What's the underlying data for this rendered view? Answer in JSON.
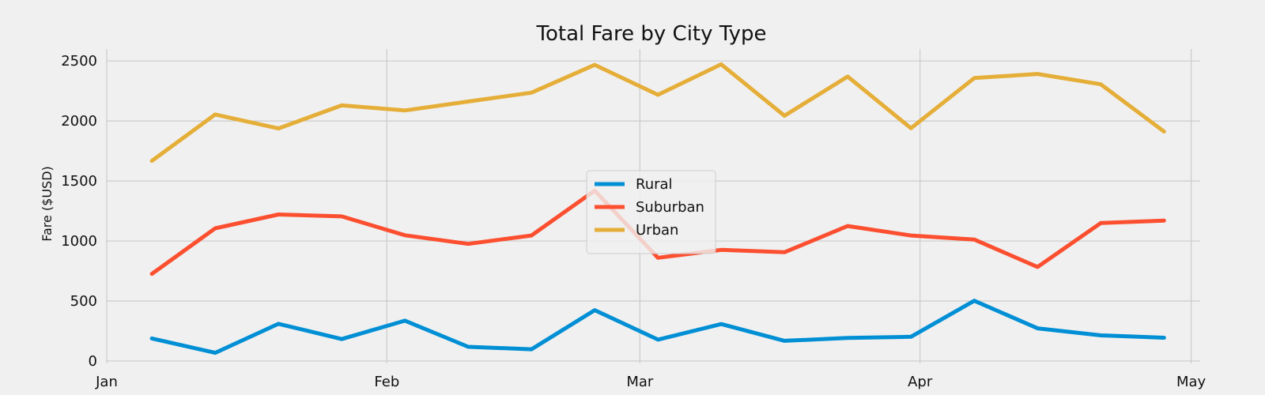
{
  "chart_data": {
    "type": "line",
    "title": "Total Fare by City Type",
    "xlabel": "",
    "ylabel": "Fare ($USD)",
    "x": [
      "2019-01-06",
      "2019-01-13",
      "2019-01-20",
      "2019-01-27",
      "2019-02-03",
      "2019-02-10",
      "2019-02-17",
      "2019-02-24",
      "2019-03-03",
      "2019-03-10",
      "2019-03-17",
      "2019-03-24",
      "2019-03-31",
      "2019-04-07",
      "2019-04-14",
      "2019-04-21",
      "2019-04-28"
    ],
    "xticks": [
      {
        "date": "2019-01-01",
        "label": "Jan"
      },
      {
        "date": "2019-02-01",
        "label": "Feb"
      },
      {
        "date": "2019-03-01",
        "label": "Mar"
      },
      {
        "date": "2019-04-01",
        "label": "Apr"
      },
      {
        "date": "2019-05-01",
        "label": "May"
      }
    ],
    "xlim": [
      "2019-01-01",
      "2019-05-02"
    ],
    "yticks": [
      0,
      500,
      1000,
      1500,
      2000,
      2500
    ],
    "ylim": [
      -20,
      2600
    ],
    "grid": true,
    "legend_position": "center",
    "series": [
      {
        "name": "Rural",
        "color": "#008fd5",
        "values": [
          188,
          68,
          310,
          183,
          336,
          118,
          98,
          424,
          178,
          308,
          168,
          192,
          202,
          502,
          272,
          214,
          194
        ]
      },
      {
        "name": "Suburban",
        "color": "#fc4f30",
        "values": [
          726,
          1106,
          1221,
          1205,
          1048,
          976,
          1046,
          1420,
          860,
          926,
          906,
          1125,
          1046,
          1012,
          784,
          1150,
          1170
        ]
      },
      {
        "name": "Urban",
        "color": "#e5ae38",
        "values": [
          1668,
          2054,
          1938,
          2130,
          2088,
          2162,
          2236,
          2468,
          2218,
          2472,
          2044,
          2370,
          1940,
          2358,
          2392,
          2306,
          1912
        ]
      }
    ]
  }
}
